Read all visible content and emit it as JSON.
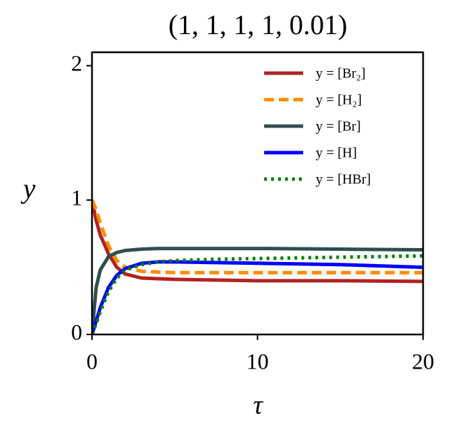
{
  "chart_data": {
    "type": "line",
    "title": "(1, 1, 1, 1, 0.01)",
    "x_label": "τ",
    "y_label": "y",
    "x": [
      0,
      0.25,
      0.5,
      1,
      1.5,
      2,
      3,
      4,
      5,
      7.5,
      10,
      15,
      20
    ],
    "series": [
      {
        "name": "y = [Br₂]",
        "color": "#b22222",
        "linestyle": "solid",
        "values": [
          1,
          0.85,
          0.74,
          0.6,
          0.5,
          0.45,
          0.42,
          0.415,
          0.41,
          0.405,
          0.4,
          0.4,
          0.395
        ]
      },
      {
        "name": "y = [H₂]",
        "color": "#ff8c00",
        "linestyle": "dashed",
        "values": [
          1,
          0.93,
          0.83,
          0.66,
          0.55,
          0.5,
          0.47,
          0.465,
          0.46,
          0.46,
          0.46,
          0.46,
          0.46
        ]
      },
      {
        "name": "y = [Br]",
        "color": "#2f4f4f",
        "linestyle": "solid",
        "values": [
          0,
          0.35,
          0.48,
          0.58,
          0.61,
          0.625,
          0.635,
          0.64,
          0.64,
          0.64,
          0.64,
          0.635,
          0.63
        ]
      },
      {
        "name": "y = [H]",
        "color": "#0000ff",
        "linestyle": "solid",
        "values": [
          0,
          0.1,
          0.2,
          0.35,
          0.44,
          0.49,
          0.53,
          0.54,
          0.54,
          0.535,
          0.53,
          0.52,
          0.5
        ]
      },
      {
        "name": "y = [HBr]",
        "color": "#008000",
        "linestyle": "dotted",
        "values": [
          0,
          0.08,
          0.17,
          0.32,
          0.42,
          0.48,
          0.52,
          0.54,
          0.55,
          0.56,
          0.565,
          0.575,
          0.585
        ]
      }
    ],
    "xlim": [
      0,
      20
    ],
    "xticks": [
      0,
      10,
      20
    ],
    "ylim": [
      0,
      2.1
    ],
    "yticks": [
      0,
      1,
      2
    ],
    "grid": false,
    "legend": "upper right"
  }
}
